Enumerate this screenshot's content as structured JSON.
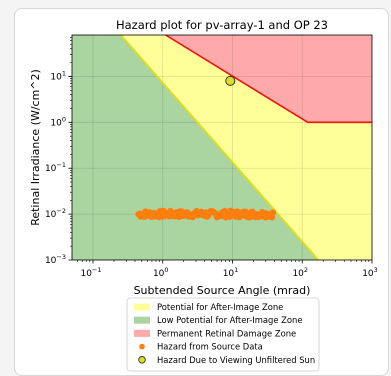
{
  "chart_data": {
    "type": "scatter",
    "title": "Hazard plot for pv-array-1 and OP 23",
    "xlabel": "Subtended Source Angle (mrad)",
    "ylabel": "Retinal Irradiance (W/cm^2)",
    "x_scale": "log",
    "y_scale": "log",
    "xlim": [
      0.05,
      1000
    ],
    "ylim": [
      0.001,
      80
    ],
    "grid": true,
    "x_ticks": [
      {
        "value": 0.1,
        "base": "10",
        "exp": "−1"
      },
      {
        "value": 1,
        "base": "10",
        "exp": "0"
      },
      {
        "value": 10,
        "base": "10",
        "exp": "1"
      },
      {
        "value": 100,
        "base": "10",
        "exp": "2"
      },
      {
        "value": 1000,
        "base": "10",
        "exp": "3"
      }
    ],
    "y_ticks": [
      {
        "value": 0.001,
        "base": "10",
        "exp": "−3"
      },
      {
        "value": 0.01,
        "base": "10",
        "exp": "−2"
      },
      {
        "value": 0.1,
        "base": "10",
        "exp": "−1"
      },
      {
        "value": 1,
        "base": "10",
        "exp": "0"
      },
      {
        "value": 10,
        "base": "10",
        "exp": "1"
      }
    ],
    "zones": {
      "low_potential_boundary": [
        [
          0.25,
          80
        ],
        [
          170,
          0.001
        ]
      ],
      "permanent_damage_boundary": [
        [
          1.1,
          80
        ],
        [
          120,
          1
        ],
        [
          1000,
          1
        ]
      ]
    },
    "source_data": {
      "x_min": 0.45,
      "x_max": 38,
      "y_min": 0.0085,
      "y_max": 0.0118,
      "count": 140
    },
    "sun_point": {
      "x": 9.3,
      "y": 8.0
    },
    "legend": {
      "placement": "below",
      "entries": [
        {
          "label": "Potential for After-Image Zone",
          "color": "#ffff99",
          "kind": "patch"
        },
        {
          "label": "Low Potential for After-Image Zone",
          "color": "#aad4a0",
          "kind": "patch"
        },
        {
          "label": "Permanent Retinal Damage Zone",
          "color": "#ffaaaa",
          "kind": "patch"
        },
        {
          "label": "Hazard from Source Data",
          "color": "#ff7f0e",
          "kind": "dot"
        },
        {
          "label": "Hazard Due to Viewing Unfiltered Sun",
          "color": "#dddd22",
          "kind": "circle"
        }
      ]
    },
    "colors": {
      "after_image_zone": "#ffff99",
      "low_potential_zone": "#aad4a0",
      "permanent_damage_zone": "#ffaaaa",
      "permanent_damage_line": "#ee1111",
      "low_potential_line": "#dddd22",
      "source_points": "#ff7f0e",
      "sun_point": "#dddd22"
    }
  }
}
